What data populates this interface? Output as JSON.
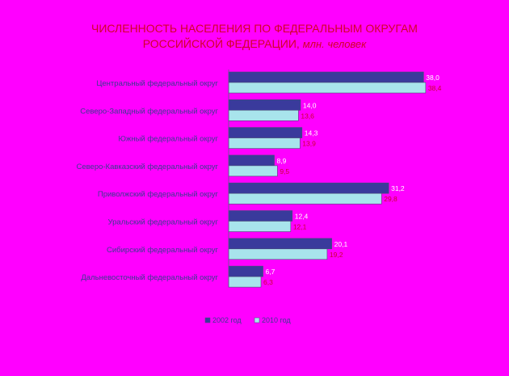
{
  "chart_data": {
    "type": "bar",
    "orientation": "horizontal",
    "title_line1": "ЧИСЛЕННОСТЬ НАСЕЛЕНИЯ ПО ФЕДЕРАЛЬНЫМ ОКРУГАМ",
    "title_line2": "РОССИЙСКОЙ ФЕДЕРАЦИИ,",
    "title_unit": "млн. человек",
    "categories": [
      "Центральный федеральный округ",
      "Северо-Западный федеральный округ",
      "Южный федеральный округ",
      "Северо-Кавказский федеральный округ",
      "Приволжский федеральный округ",
      "Уральский федеральный округ",
      "Сибирский федеральный округ",
      "Дальневосточный федеральный округ"
    ],
    "series": [
      {
        "name": "2002 год",
        "values": [
          38.0,
          14.0,
          14.3,
          8.9,
          31.2,
          12.4,
          20.1,
          6.7
        ],
        "labels": [
          "38,0",
          "14,0",
          "14,3",
          "8,9",
          "31,2",
          "12,4",
          "20,1",
          "6,7"
        ],
        "color": "#3a3a9c",
        "label_color": "#ffffff"
      },
      {
        "name": "2010 год",
        "values": [
          38.4,
          13.6,
          13.9,
          9.5,
          29.8,
          12.1,
          19.2,
          6.3
        ],
        "labels": [
          "38,4",
          "13,6",
          "13,9",
          "9,5",
          "29,8",
          "12,1",
          "19,2",
          "6,3"
        ],
        "color": "#a8e4ec",
        "label_color": "#cc0033"
      }
    ],
    "xlim": [
      0,
      40
    ],
    "grid": false,
    "legend_position": "bottom"
  },
  "colors": {
    "background": "#ff00ff",
    "title": "#d4002a",
    "category_text": "#3b3b8f"
  }
}
